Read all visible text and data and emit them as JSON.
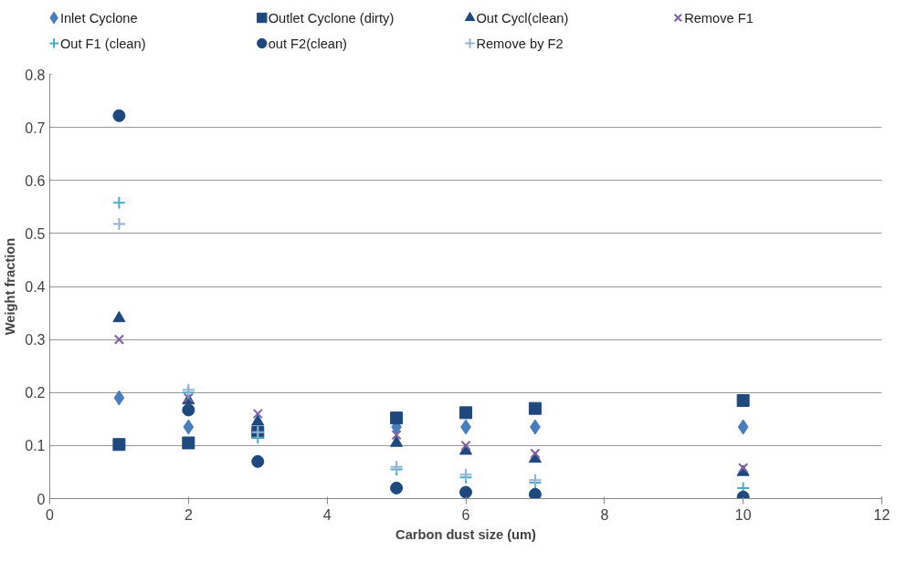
{
  "chart_data": {
    "type": "scatter",
    "xlabel": "Carbon dust size (um)",
    "ylabel": "Weight fraction",
    "x": [
      1,
      2,
      3,
      5,
      6,
      7,
      10
    ],
    "xlim": [
      0,
      12
    ],
    "xticks": [
      0,
      2,
      4,
      6,
      8,
      10,
      12
    ],
    "ylim": [
      0,
      0.8
    ],
    "yticks": [
      0,
      0.1,
      0.2,
      0.3,
      0.4,
      0.5,
      0.6,
      0.7,
      0.8
    ],
    "grid": "y",
    "legend": "top",
    "series": [
      {
        "name": "Inlet Cyclone",
        "color": "#4a7ebb",
        "marker": "diamond",
        "values": [
          0.19,
          0.135,
          null,
          0.135,
          0.135,
          0.135,
          0.135
        ]
      },
      {
        "name": "Outlet Cyclone (dirty)",
        "color": "#1f497d",
        "marker": "square",
        "values": [
          0.102,
          0.105,
          0.125,
          0.152,
          0.162,
          0.17,
          0.185
        ]
      },
      {
        "name": "Out Cycl(clean)",
        "color": "#1f497d",
        "marker": "triangle",
        "values": [
          0.34,
          0.185,
          0.145,
          0.105,
          0.09,
          0.075,
          0.05
        ]
      },
      {
        "name": "Remove F1",
        "color": "#7d60a0",
        "marker": "x",
        "values": [
          0.3,
          0.19,
          0.16,
          0.12,
          0.1,
          0.085,
          0.058
        ]
      },
      {
        "name": "Out F1 (clean)",
        "color": "#4bacc6",
        "marker": "cross",
        "values": [
          0.558,
          0.2,
          0.115,
          0.055,
          0.04,
          0.03,
          0.02
        ]
      },
      {
        "name": "out F2(clean)",
        "color": "#1f497d",
        "marker": "circle",
        "values": [
          0.722,
          0.167,
          0.07,
          0.02,
          0.012,
          0.008,
          0.003
        ]
      },
      {
        "name": "Remove by F2",
        "color": "#94b3d6",
        "marker": "cross",
        "values": [
          0.518,
          0.205,
          0.125,
          0.06,
          0.045,
          0.035,
          null
        ]
      }
    ]
  }
}
